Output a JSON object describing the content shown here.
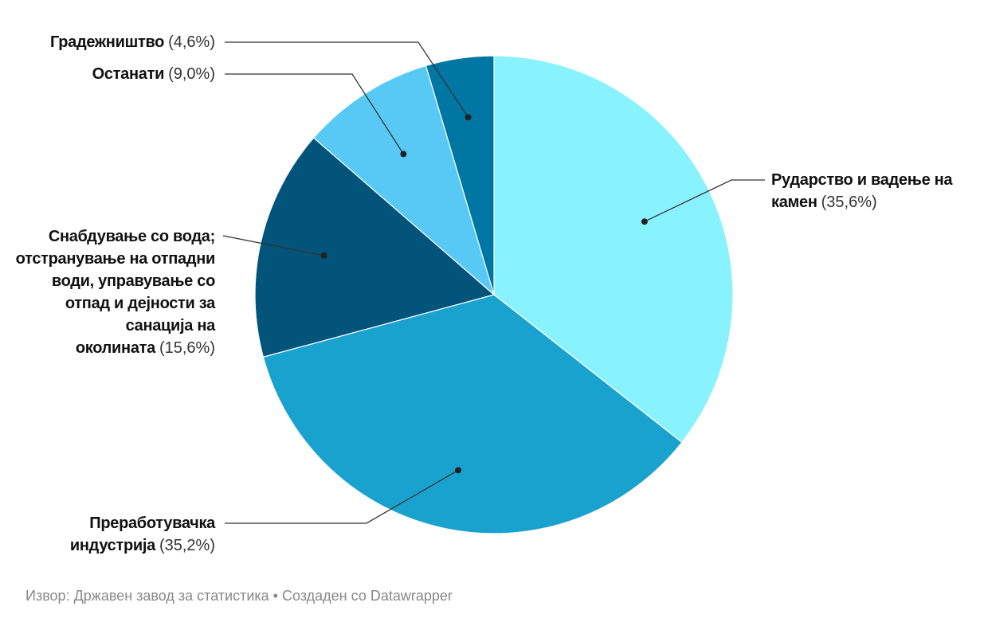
{
  "chart_data": {
    "type": "pie",
    "categories": [
      "Рударство и вадење на камен",
      "Преработувачка индустрија",
      "Снабдување со вода; отстранување на отпадни води, управување со отпад и дејности за санација на околината",
      "Останати",
      "Градежништво"
    ],
    "values": [
      35.6,
      35.2,
      15.6,
      9.0,
      4.6
    ],
    "value_labels": [
      "(35,6%)",
      "(35,2%)",
      "(15,6%)",
      "(9,0%)",
      "(4,6%)"
    ],
    "colors": [
      "#88f2fe",
      "#1aa2cf",
      "#03547a",
      "#58c9f5",
      "#0076a3"
    ],
    "footer": "Извор: Државен завод за статистика • Создаден со Datawrapper"
  }
}
